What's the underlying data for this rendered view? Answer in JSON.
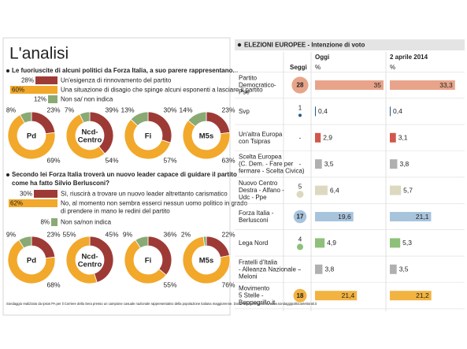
{
  "panel_title": "L'analisi",
  "surveys": [
    {
      "question": [
        "Le fuoriuscite di alcuni politici da Forza Italia, a suo parere rappresentano..."
      ],
      "answers": [
        {
          "text": [
            "Un'esigenza di rinnovamento del partito"
          ],
          "color": "#9e3a36",
          "value": 28,
          "value_label": "28%"
        },
        {
          "text": [
            "Una situazione di disagio che spinge alcuni esponenti a lasciare il partito"
          ],
          "color": "#f2a82a",
          "value": 60,
          "value_label": "60%"
        },
        {
          "text": [
            "Non sa/ non indica"
          ],
          "color": "#8aaa74",
          "value": 12,
          "value_label": "12%"
        }
      ],
      "groups": [
        {
          "name": [
            "Pd"
          ],
          "values": [
            23,
            69,
            8
          ],
          "value_labels": [
            "23%",
            "69%",
            "8%"
          ]
        },
        {
          "name": [
            "Ncd-",
            "Centro"
          ],
          "values": [
            39,
            54,
            7
          ],
          "value_labels": [
            "39%",
            "54%",
            "7%"
          ]
        },
        {
          "name": [
            "Fi"
          ],
          "values": [
            30,
            57,
            13
          ],
          "value_labels": [
            "30%",
            "57%",
            "13%"
          ]
        },
        {
          "name": [
            "M5s"
          ],
          "values": [
            23,
            63,
            14
          ],
          "value_labels": [
            "23%",
            "63%",
            "14%"
          ]
        }
      ]
    },
    {
      "question": [
        "Secondo lei Forza Italia troverà un nuovo leader capace di guidare il partito",
        "come ha fatto Silvio Berlusconi?"
      ],
      "answers": [
        {
          "text": [
            "Sì, riuscirà a trovare un nuovo leader altrettanto carismatico"
          ],
          "color": "#9e3a36",
          "value": 30,
          "value_label": "30%"
        },
        {
          "text": [
            "No, al momento non sembra esserci nessun uomo politico in grado",
            "di prendere in mano le redini del partito"
          ],
          "color": "#f2a82a",
          "value": 62,
          "value_label": "62%"
        },
        {
          "text": [
            "Non sa/non indica"
          ],
          "color": "#8aaa74",
          "value": 8,
          "value_label": "8%"
        }
      ],
      "groups": [
        {
          "name": [
            "Pd"
          ],
          "values": [
            23,
            68,
            9
          ],
          "value_labels": [
            "23%",
            "68%",
            "9%"
          ]
        },
        {
          "name": [
            "Ncd-",
            "Centro"
          ],
          "values": [
            45,
            55,
            null
          ],
          "value_labels": [
            "45%",
            "55%",
            null
          ]
        },
        {
          "name": [
            "Fi"
          ],
          "values": [
            36,
            55,
            9
          ],
          "value_labels": [
            "36%",
            "55%",
            "9%"
          ]
        },
        {
          "name": [
            "M5s"
          ],
          "values": [
            22,
            76,
            2
          ],
          "value_labels": [
            "22%",
            "76%",
            "2%"
          ]
        }
      ]
    }
  ],
  "note": "Sondaggio realizzato da Ipsos PA per il Corriere della Sera presso un campione casuale nazionale rappresentativo della popolazione italiana maggiorenne. Documento completo su www.sondaggipoliticoelettorali.it",
  "elections": {
    "title": "ELEZIONI EUROPEE - Intenzione di voto",
    "seats_header": "Seggi",
    "columns": [
      {
        "header": "Oggi",
        "unit": "%"
      },
      {
        "header": "2 aprile 2014",
        "unit": "%"
      }
    ],
    "xlim": [
      0,
      35
    ],
    "parties": [
      {
        "name": [
          "Partito",
          "Democratico-",
          "Pse"
        ],
        "color": "#e8a48a",
        "seats": 28,
        "seat_label": "28",
        "values": [
          35,
          33.3
        ],
        "value_labels": [
          "35",
          "33,3"
        ]
      },
      {
        "name": [
          "Svp"
        ],
        "color": "#1e5a8c",
        "seats": 1,
        "seat_label": "1",
        "values": [
          0.4,
          0.4
        ],
        "value_labels": [
          "0,4",
          "0,4"
        ]
      },
      {
        "name": [
          "Un'altra Europa",
          "con Tsipras"
        ],
        "color": "#d0584a",
        "seats": null,
        "seat_label": "-",
        "values": [
          2.9,
          3.1
        ],
        "value_labels": [
          "2,9",
          "3,1"
        ]
      },
      {
        "name": [
          "Scelta Europea",
          "(C. Dem. - Fare per",
          "fermare - Scelta Civica)"
        ],
        "color": "#b0b0b0",
        "seats": null,
        "seat_label": "-",
        "values": [
          3.5,
          3.8
        ],
        "value_labels": [
          "3,5",
          "3,8"
        ]
      },
      {
        "name": [
          "Nuovo Centro",
          "Destra - Alfano -",
          "Udc - Ppe"
        ],
        "color": "#ddd8c0",
        "seats": 5,
        "seat_label": "5",
        "values": [
          6.4,
          5.7
        ],
        "value_labels": [
          "6,4",
          "5,7"
        ]
      },
      {
        "name": [
          "Forza Italia -",
          "Berlusconi"
        ],
        "color": "#a8c4dc",
        "seats": 17,
        "seat_label": "17",
        "values": [
          19.6,
          21.1
        ],
        "value_labels": [
          "19,6",
          "21,1"
        ]
      },
      {
        "name": [
          "Lega Nord"
        ],
        "color": "#8ec07a",
        "seats": 4,
        "seat_label": "4",
        "values": [
          4.9,
          5.3
        ],
        "value_labels": [
          "4,9",
          "5,3"
        ]
      },
      {
        "name": [
          "Fratelli d'Italia",
          "- Alleanza Nazionale -",
          "Meloni"
        ],
        "color": "#b0b0b0",
        "seats": null,
        "seat_label": "-",
        "values": [
          3.8,
          3.5
        ],
        "value_labels": [
          "3,8",
          "3,5"
        ]
      },
      {
        "name": [
          "Movimento",
          "5 Stelle -",
          "Beppegrillo.it"
        ],
        "color": "#f2b340",
        "seats": 18,
        "seat_label": "18",
        "values": [
          21.4,
          21.2
        ],
        "value_labels": [
          "21,4",
          "21,2"
        ]
      }
    ]
  }
}
